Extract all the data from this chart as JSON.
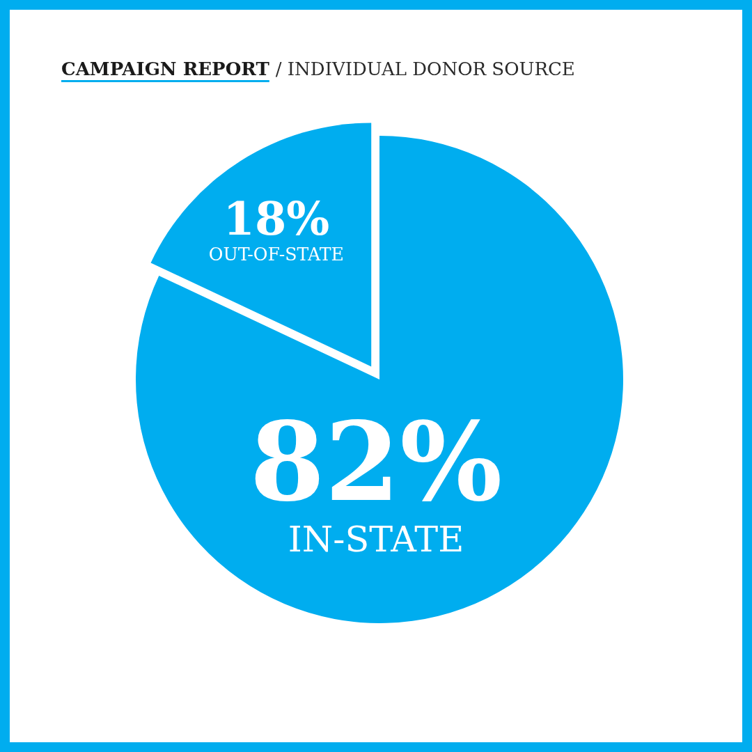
{
  "chart_data": {
    "type": "pie",
    "title": "CAMPAIGN REPORT",
    "subtitle": "/ INDIVIDUAL DONOR SOURCE",
    "categories": [
      "IN-STATE",
      "OUT-OF-STATE"
    ],
    "values": [
      82,
      18
    ],
    "colors": [
      "#00adef",
      "#00adef"
    ],
    "value_labels": [
      "82%",
      "18%"
    ]
  }
}
